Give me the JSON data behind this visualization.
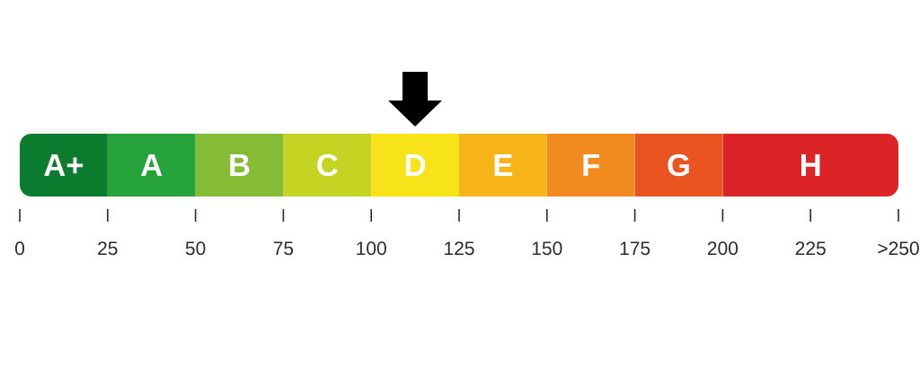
{
  "chart_data": {
    "type": "bar",
    "orientation": "horizontal",
    "stacked": true,
    "categories": [
      null
    ],
    "series": [
      {
        "name": "A+",
        "color": "#0b7b2e",
        "values": [
          25
        ]
      },
      {
        "name": "A",
        "color": "#25a23a",
        "values": [
          25
        ]
      },
      {
        "name": "B",
        "color": "#86bc35",
        "values": [
          25
        ]
      },
      {
        "name": "C",
        "color": "#c5d323",
        "values": [
          25
        ]
      },
      {
        "name": "D",
        "color": "#f8e31b",
        "values": [
          25
        ]
      },
      {
        "name": "E",
        "color": "#f7b519",
        "values": [
          25
        ]
      },
      {
        "name": "F",
        "color": "#f18a1f",
        "values": [
          25
        ]
      },
      {
        "name": "G",
        "color": "#e95420",
        "values": [
          25
        ]
      },
      {
        "name": "H",
        "color": "#dc2427",
        "values": [
          50
        ]
      }
    ],
    "xlim": [
      0,
      250
    ],
    "xticks": [
      0,
      25,
      50,
      75,
      100,
      125,
      150,
      175,
      200,
      225,
      {
        "value": 250,
        "label": ">250"
      }
    ]
  }
}
